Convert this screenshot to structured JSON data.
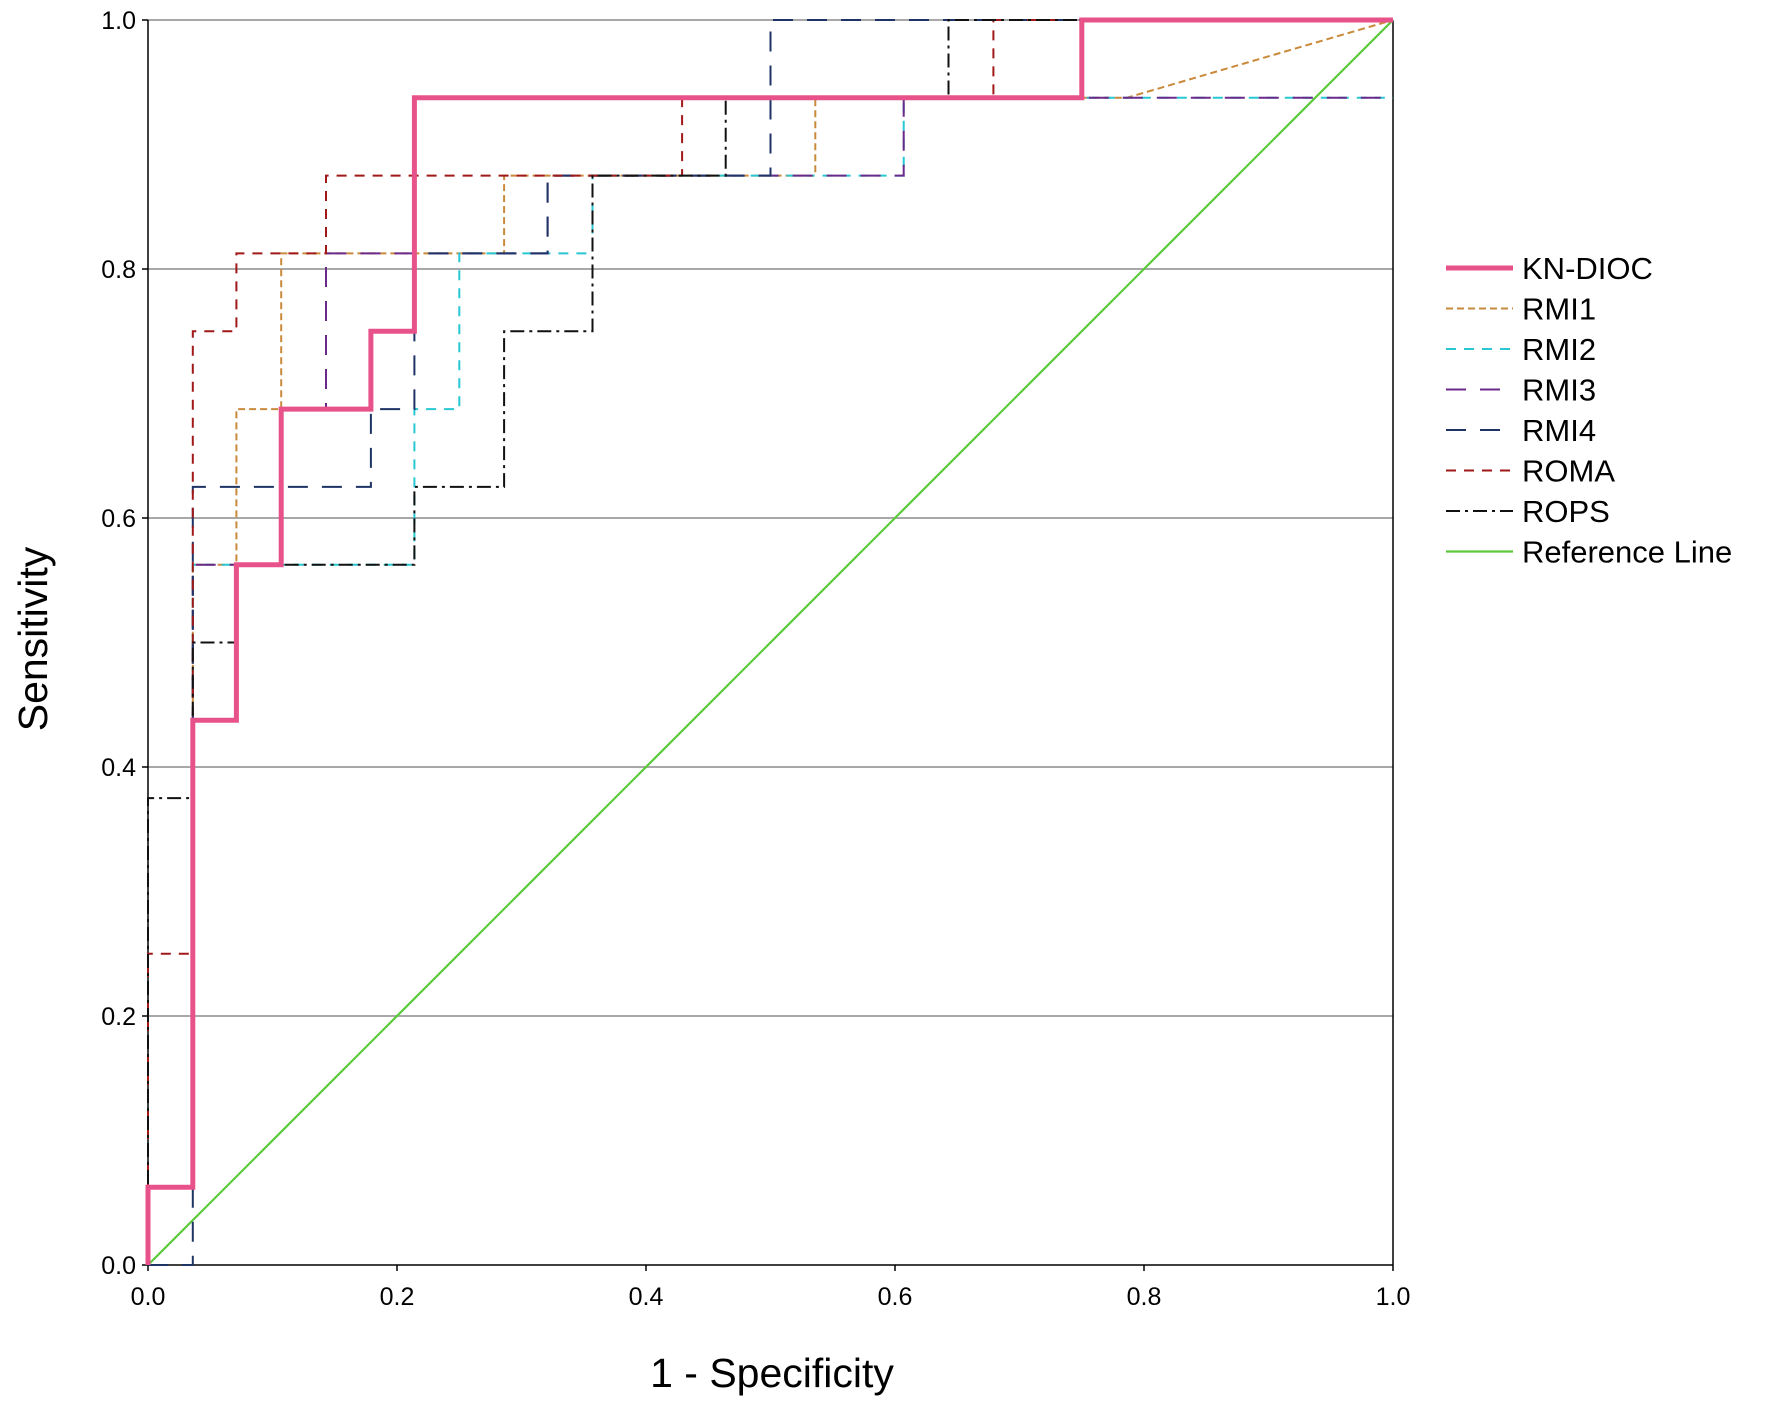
{
  "chart_data": {
    "type": "line",
    "title": "",
    "xlabel": "1 - Specificity",
    "ylabel": "Sensitivity",
    "xlim": [
      0,
      1
    ],
    "ylim": [
      0,
      1
    ],
    "x_ticks": [
      "0.0",
      "0.2",
      "0.4",
      "0.6",
      "0.8",
      "1.0"
    ],
    "y_ticks": [
      "0.0",
      "0.2",
      "0.4",
      "0.6",
      "0.8",
      "1.0"
    ],
    "grid": "horizontal",
    "legend_position": "right",
    "series": [
      {
        "name": "KN-DIOC",
        "color": "#e8528a",
        "style": "solid-thick",
        "x": [
          0,
          0,
          0.036,
          0.036,
          0.071,
          0.071,
          0.107,
          0.107,
          0.179,
          0.179,
          0.214,
          0.214,
          0.75,
          0.75,
          1
        ],
        "y": [
          0,
          0.0625,
          0.0625,
          0.4375,
          0.4375,
          0.5625,
          0.5625,
          0.6875,
          0.6875,
          0.75,
          0.75,
          0.9375,
          0.9375,
          1,
          1
        ]
      },
      {
        "name": "RMI1",
        "color": "#c98a3c",
        "style": "dotted-dash",
        "x": [
          0,
          0,
          0.036,
          0.036,
          0.071,
          0.071,
          0.107,
          0.107,
          0.286,
          0.286,
          0.536,
          0.536,
          0.786,
          1
        ],
        "y": [
          0,
          0.0625,
          0.0625,
          0.5625,
          0.5625,
          0.6875,
          0.6875,
          0.8125,
          0.8125,
          0.875,
          0.875,
          0.9375,
          0.9375,
          1
        ]
      },
      {
        "name": "RMI2",
        "color": "#28c8d2",
        "style": "dashed",
        "x": [
          0,
          0,
          0.036,
          0.036,
          0.214,
          0.214,
          0.25,
          0.25,
          0.357,
          0.357,
          0.607,
          0.607,
          1
        ],
        "y": [
          0,
          0.0625,
          0.0625,
          0.5625,
          0.5625,
          0.6875,
          0.6875,
          0.8125,
          0.8125,
          0.875,
          0.875,
          0.9375,
          0.9375
        ]
      },
      {
        "name": "RMI3",
        "color": "#6a2a8a",
        "style": "long-dash",
        "x": [
          0,
          0,
          0.036,
          0.036,
          0.107,
          0.107,
          0.143,
          0.143,
          0.321,
          0.321,
          0.607,
          0.607,
          1
        ],
        "y": [
          0,
          0.0625,
          0.0625,
          0.5625,
          0.5625,
          0.6875,
          0.6875,
          0.8125,
          0.8125,
          0.875,
          0.875,
          0.9375,
          0.9375
        ]
      },
      {
        "name": "RMI4",
        "color": "#1e3466",
        "style": "long-dash",
        "x": [
          0,
          0.036,
          0.036,
          0.179,
          0.179,
          0.214,
          0.214,
          0.321,
          0.321,
          0.5,
          0.5,
          1
        ],
        "y": [
          0,
          0,
          0.625,
          0.625,
          0.6875,
          0.6875,
          0.8125,
          0.8125,
          0.875,
          0.875,
          1,
          1
        ]
      },
      {
        "name": "ROMA",
        "color": "#a01818",
        "style": "dashed",
        "x": [
          0,
          0,
          0.036,
          0.036,
          0.071,
          0.071,
          0.143,
          0.143,
          0.429,
          0.429,
          0.679,
          0.679,
          1
        ],
        "y": [
          0,
          0.25,
          0.25,
          0.75,
          0.75,
          0.8125,
          0.8125,
          0.875,
          0.875,
          0.9375,
          0.9375,
          1,
          1
        ]
      },
      {
        "name": "ROPS",
        "color": "#111111",
        "style": "dash-dot",
        "x": [
          0,
          0,
          0.036,
          0.036,
          0.071,
          0.071,
          0.214,
          0.214,
          0.286,
          0.286,
          0.357,
          0.357,
          0.464,
          0.464,
          0.643,
          0.643,
          1
        ],
        "y": [
          0,
          0.375,
          0.375,
          0.5,
          0.5,
          0.5625,
          0.5625,
          0.625,
          0.625,
          0.75,
          0.75,
          0.875,
          0.875,
          0.9375,
          0.9375,
          1,
          1
        ]
      },
      {
        "name": "Reference Line",
        "color": "#5cc83c",
        "style": "solid",
        "x": [
          0,
          1
        ],
        "y": [
          0,
          1
        ]
      }
    ]
  }
}
